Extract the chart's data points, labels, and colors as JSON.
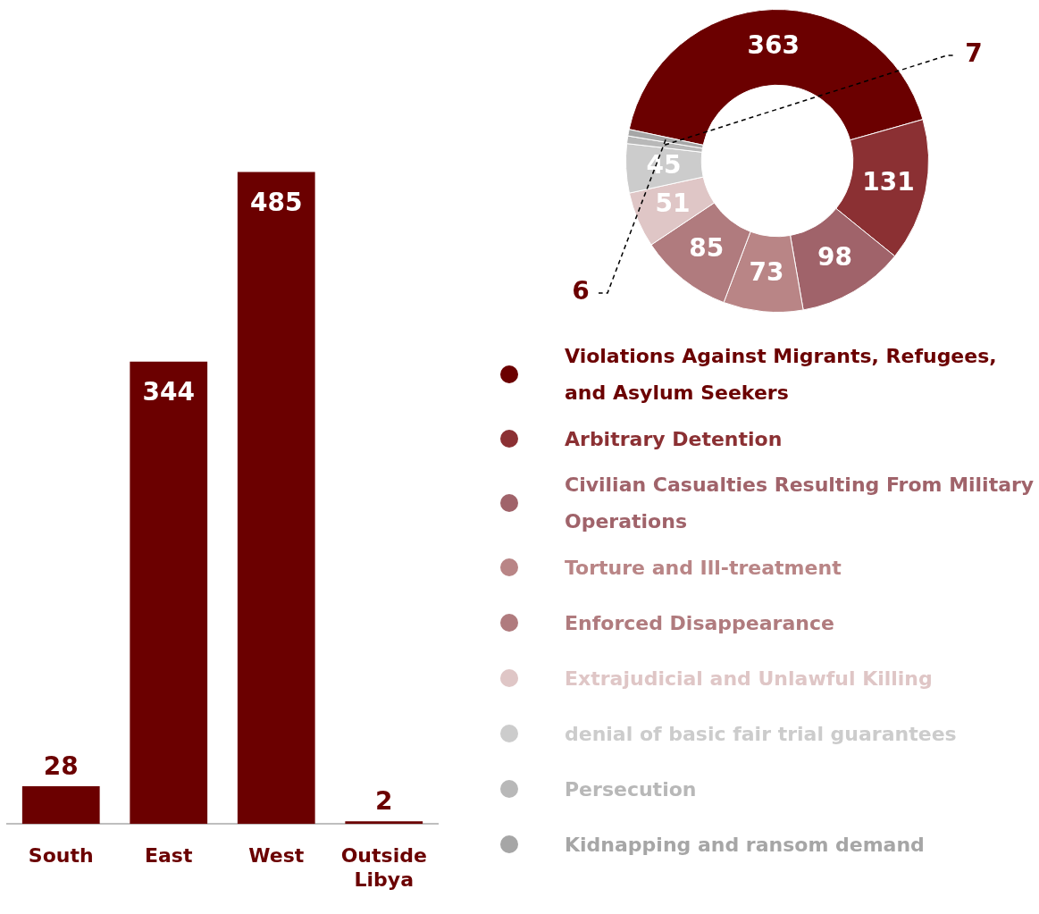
{
  "chart_data": [
    {
      "type": "bar",
      "categories": [
        "South",
        "East",
        "West",
        "Outside Libya"
      ],
      "values": [
        28,
        344,
        485,
        2
      ],
      "color": "#6b0000",
      "data_labels": true,
      "grid": false,
      "legend": false,
      "tick_labels": "x"
    },
    {
      "type": "donut",
      "categories": [
        "Violations Against Migrants, Refugees, and Asylum Seekers",
        "Arbitrary Detention",
        "Civilian Casualties Resulting From Military Operations",
        "Torture and Ill-treatment",
        "Enforced Disappearance",
        "Extrajudicial and Unlawful Killing",
        "denial of basic fair trial guarantees",
        "Persecution",
        "Kidnapping and ransom demand"
      ],
      "values": [
        363,
        131,
        98,
        73,
        85,
        51,
        45,
        7,
        6
      ],
      "colors": [
        "#6b0000",
        "#8b3033",
        "#a0636a",
        "#b98586",
        "#b07b7e",
        "#dfc6c6",
        "#cccccc",
        "#b8b8b8",
        "#a6a6a6"
      ],
      "data_labels": true,
      "legend": "bottom"
    }
  ]
}
